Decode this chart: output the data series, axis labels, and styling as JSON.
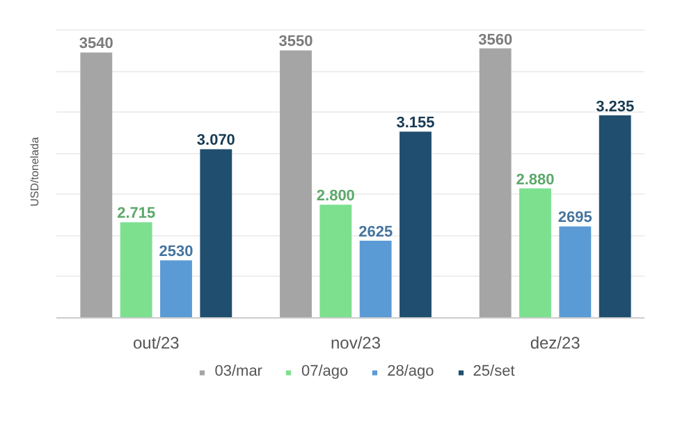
{
  "chart_data": {
    "type": "bar",
    "ylabel": "USD/tonelada",
    "categories": [
      "out/23",
      "nov/23",
      "dez/23"
    ],
    "series": [
      {
        "name": "03/mar",
        "color": "#a5a5a5",
        "values": [
          3540,
          3550,
          3560
        ],
        "value_labels": [
          "3540",
          "3550",
          "3560"
        ]
      },
      {
        "name": "07/ago",
        "color": "#7ce08f",
        "values": [
          2715,
          2800,
          2880
        ],
        "value_labels": [
          "2.715",
          "2.800",
          "2.880"
        ]
      },
      {
        "name": "28/ago",
        "color": "#5b9bd5",
        "values": [
          2530,
          2625,
          2695
        ],
        "value_labels": [
          "2530",
          "2625",
          "2695"
        ]
      },
      {
        "name": "25/set",
        "color": "#1f4e6e",
        "values": [
          3070,
          3155,
          3235
        ],
        "value_labels": [
          "3.070",
          "3.155",
          "3.235"
        ]
      }
    ],
    "ylim": [
      2250,
      3670
    ],
    "yticks": [
      {
        "value": 2450,
        "label": null
      },
      {
        "value": 2650,
        "label": null
      },
      {
        "value": 2850,
        "label": null
      },
      {
        "value": 3050,
        "label": null
      },
      {
        "value": 3250,
        "label": null
      },
      {
        "value": 3450,
        "label": null
      },
      {
        "value": 3650,
        "label": null
      }
    ],
    "tick_labels": "x",
    "grid": "y",
    "legend": "bottom"
  }
}
